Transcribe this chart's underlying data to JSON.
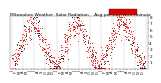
{
  "title": "Milwaukee Weather  Solar Radiation    Avg per Day W/m²/minute",
  "title_fontsize": 3.2,
  "background_color": "#ffffff",
  "plot_bg_color": "#ffffff",
  "grid_color": "#bbbbbb",
  "dot_color_red": "#ff0000",
  "dot_color_black": "#000000",
  "legend_rect_color": "#dd0000",
  "ylim": [
    0,
    8
  ],
  "ytick_vals": [
    1,
    2,
    3,
    4,
    5,
    6,
    7,
    8
  ],
  "ytick_labels": [
    "1",
    "2",
    "3",
    "4",
    "5",
    "6",
    "7",
    "8"
  ],
  "num_months": 36,
  "y_tick_fontsize": 3.0,
  "x_tick_fontsize": 2.5,
  "dot_size": 0.5,
  "seed": 12345
}
